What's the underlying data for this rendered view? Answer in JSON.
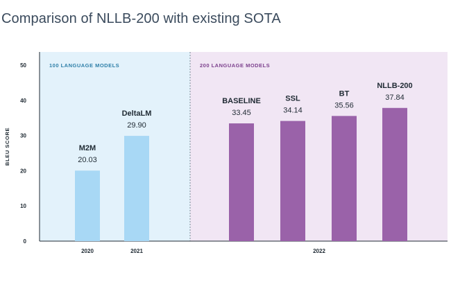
{
  "title": "Comparison of NLLB-200 with existing SOTA",
  "chart_data": {
    "type": "bar",
    "title": "Comparison of NLLB-200 with existing SOTA",
    "ylabel": "BLEU SCORE",
    "ylim": [
      0,
      50
    ],
    "yticks": [
      0,
      10,
      20,
      30,
      40,
      50
    ],
    "grid": false,
    "panels": [
      {
        "label": "100 LANGUAGE MODELS",
        "color": "#e3f2fb",
        "label_color": "#2e7fa8"
      },
      {
        "label": "200 LANGUAGE MODELS",
        "color": "#f1e6f4",
        "label_color": "#7b3f8c"
      }
    ],
    "bars": [
      {
        "name": "M2M",
        "value": 20.03,
        "value_label": "20.03",
        "panel": 0,
        "color": "#a8d8f5"
      },
      {
        "name": "DeltaLM",
        "value": 29.9,
        "value_label": "29.90",
        "panel": 0,
        "color": "#a8d8f5"
      },
      {
        "name": "BASELINE",
        "value": 33.45,
        "value_label": "33.45",
        "panel": 1,
        "color": "#9a62a9"
      },
      {
        "name": "SSL",
        "value": 34.14,
        "value_label": "34.14",
        "panel": 1,
        "color": "#9a62a9"
      },
      {
        "name": "BT",
        "value": 35.56,
        "value_label": "35.56",
        "panel": 1,
        "color": "#9a62a9"
      },
      {
        "name": "NLLB-200",
        "value": 37.84,
        "value_label": "37.84",
        "panel": 1,
        "color": "#9a62a9"
      }
    ],
    "x_labels": [
      "2020",
      "2021",
      "2022"
    ]
  }
}
